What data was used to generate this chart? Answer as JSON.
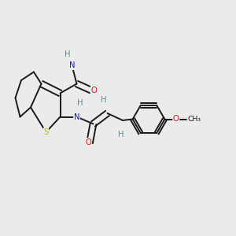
{
  "bg_color": "#ebebeb",
  "bond_color": "#1a1a1a",
  "bond_width": 1.4,
  "atom_colors": {
    "C": "#1a1a1a",
    "H": "#4a9595",
    "N": "#1414cc",
    "O": "#cc1414",
    "S": "#b8b800"
  },
  "font_size": 7.2
}
